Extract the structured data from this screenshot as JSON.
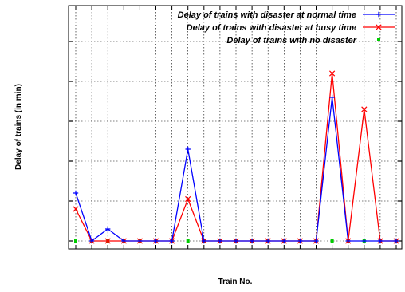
{
  "chart_data": {
    "type": "line",
    "xlabel": "Train No.",
    "ylabel": "Delay of trains (in min)",
    "categories": [
      "",
      "",
      "",
      "",
      "",
      "",
      "",
      "",
      "",
      "",
      "",
      "",
      "",
      "",
      "",
      "",
      "",
      "",
      "",
      "",
      ""
    ],
    "ylim": [
      -0.2,
      5.9
    ],
    "yticks": [
      0,
      1,
      2,
      3,
      4,
      5
    ],
    "grid": true,
    "legend_position": "top-right",
    "series": [
      {
        "name": "Delay of trains with disaster at normal time",
        "color": "#0000ff",
        "marker": "plus",
        "values": [
          1.2,
          0,
          0.3,
          0,
          0,
          0,
          0,
          2.3,
          0,
          0,
          0,
          0,
          0,
          0,
          0,
          0,
          3.6,
          0,
          0,
          0,
          0
        ]
      },
      {
        "name": "Delay of trains with disaster at busy time",
        "color": "#ff0000",
        "marker": "cross",
        "values": [
          0.8,
          0,
          0,
          0,
          0,
          0,
          0,
          1.05,
          0,
          0,
          0,
          0,
          0,
          0,
          0,
          0,
          4.2,
          0,
          3.3,
          0,
          0
        ]
      },
      {
        "name": "Delay of trains with no disaster",
        "color": "#00cc00",
        "marker": "square",
        "values": [
          0,
          0,
          0,
          0,
          0,
          0,
          0,
          0,
          0,
          0,
          0,
          0,
          0,
          0,
          0,
          0,
          0,
          0,
          0,
          0,
          0
        ]
      }
    ]
  }
}
